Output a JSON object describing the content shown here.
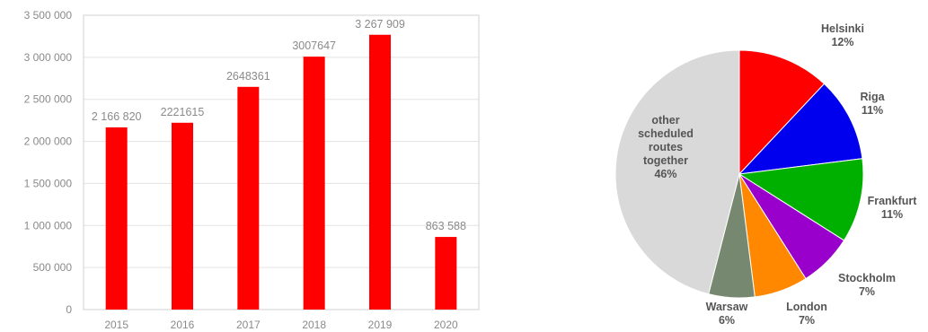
{
  "chart_data": [
    {
      "type": "bar",
      "categories": [
        "2015",
        "2016",
        "2017",
        "2018",
        "2019",
        "2020"
      ],
      "values": [
        2166820,
        2221615,
        2648361,
        3007647,
        3267909,
        863588
      ],
      "value_labels": [
        "2 166 820",
        "2221615",
        "2648361",
        "3007647",
        "3 267 909",
        "863 588"
      ],
      "ylim": [
        0,
        3500000
      ],
      "y_ticks": [
        0,
        500000,
        1000000,
        1500000,
        2000000,
        2500000,
        3000000,
        3500000
      ],
      "y_tick_labels": [
        "0",
        "500 000",
        "1 000 000",
        "1 500 000",
        "2 000 000",
        "2 500 000",
        "3 000 000",
        "3 500 000"
      ],
      "bar_color": "#ff0000",
      "grid": true
    },
    {
      "type": "pie",
      "start_angle_deg": 0,
      "direction": "clockwise",
      "slices": [
        {
          "label": "Helsinki",
          "pct_label": "12%",
          "value": 12,
          "color": "#ff0000"
        },
        {
          "label": "Riga",
          "pct_label": "11%",
          "value": 11,
          "color": "#0000ee"
        },
        {
          "label": "Frankfurt",
          "pct_label": "11%",
          "value": 11,
          "color": "#00b000"
        },
        {
          "label": "Stockholm",
          "pct_label": "7%",
          "value": 7,
          "color": "#9900cc"
        },
        {
          "label": "London",
          "pct_label": "7%",
          "value": 7,
          "color": "#ff8800"
        },
        {
          "label": "Warsaw",
          "pct_label": "6%",
          "value": 6,
          "color": "#778870"
        },
        {
          "label": "other scheduled routes together",
          "label_lines": [
            "other",
            "scheduled",
            "routes",
            "together"
          ],
          "pct_label": "46%",
          "value": 46,
          "color": "#d9d9d9"
        }
      ]
    }
  ]
}
